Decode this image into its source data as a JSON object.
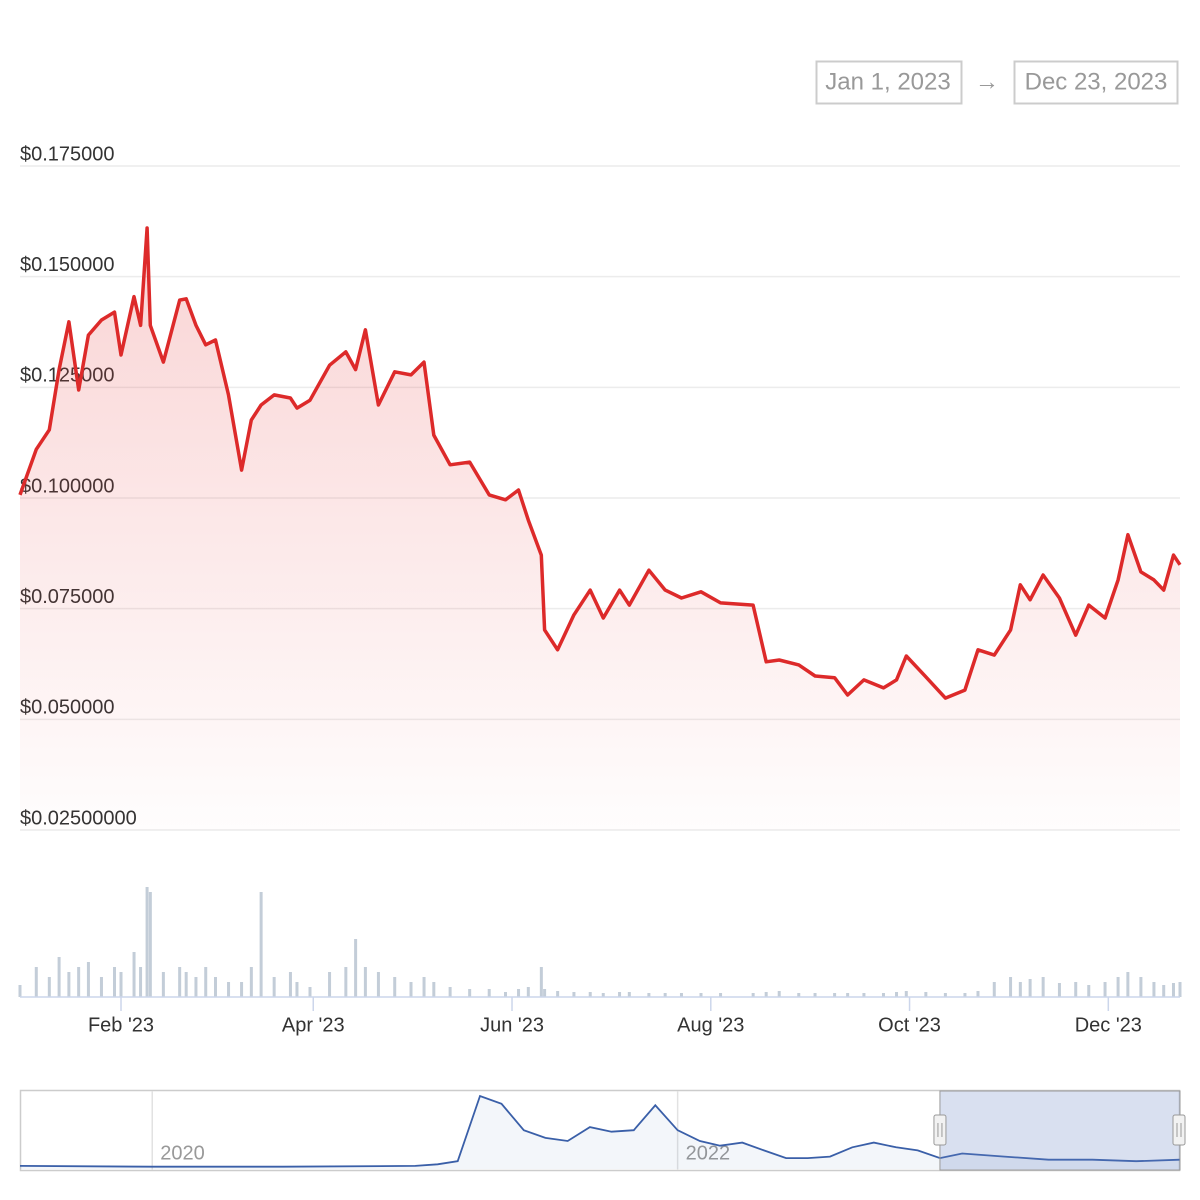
{
  "chart_data": [
    {
      "type": "line",
      "range": {
        "from": "Jan 1, 2023",
        "separator": "→",
        "to": "Dec 23, 2023"
      },
      "color": "#dd2a2a",
      "x": [
        "2023-01-01",
        "2023-01-06",
        "2023-01-10",
        "2023-01-13",
        "2023-01-16",
        "2023-01-19",
        "2023-01-22",
        "2023-01-26",
        "2023-01-30",
        "2023-02-01",
        "2023-02-05",
        "2023-02-07",
        "2023-02-09",
        "2023-02-10",
        "2023-02-14",
        "2023-02-19",
        "2023-02-21",
        "2023-02-24",
        "2023-02-27",
        "2023-03-02",
        "2023-03-06",
        "2023-03-10",
        "2023-03-13",
        "2023-03-16",
        "2023-03-20",
        "2023-03-25",
        "2023-03-27",
        "2023-03-31",
        "2023-04-06",
        "2023-04-11",
        "2023-04-14",
        "2023-04-17",
        "2023-04-21",
        "2023-04-26",
        "2023-05-01",
        "2023-05-05",
        "2023-05-08",
        "2023-05-13",
        "2023-05-19",
        "2023-05-25",
        "2023-05-30",
        "2023-06-03",
        "2023-06-06",
        "2023-06-10",
        "2023-06-11",
        "2023-06-15",
        "2023-06-20",
        "2023-06-25",
        "2023-06-29",
        "2023-07-04",
        "2023-07-07",
        "2023-07-13",
        "2023-07-18",
        "2023-07-23",
        "2023-07-29",
        "2023-08-04",
        "2023-08-14",
        "2023-08-18",
        "2023-08-22",
        "2023-08-28",
        "2023-09-02",
        "2023-09-08",
        "2023-09-12",
        "2023-09-17",
        "2023-09-23",
        "2023-09-27",
        "2023-09-30",
        "2023-10-06",
        "2023-10-12",
        "2023-10-18",
        "2023-10-22",
        "2023-10-27",
        "2023-11-01",
        "2023-11-04",
        "2023-11-07",
        "2023-11-11",
        "2023-11-16",
        "2023-11-21",
        "2023-11-25",
        "2023-11-30",
        "2023-12-04",
        "2023-12-07",
        "2023-12-11",
        "2023-12-15",
        "2023-12-18",
        "2023-12-21",
        "2023-12-23"
      ],
      "values": [
        0.1007,
        0.111,
        0.1154,
        0.129,
        0.1398,
        0.1244,
        0.1368,
        0.1402,
        0.142,
        0.1323,
        0.1455,
        0.139,
        0.161,
        0.139,
        0.1307,
        0.1447,
        0.145,
        0.139,
        0.1346,
        0.1357,
        0.1233,
        0.1063,
        0.1176,
        0.121,
        0.1233,
        0.1226,
        0.1203,
        0.1221,
        0.13,
        0.133,
        0.129,
        0.138,
        0.121,
        0.1285,
        0.1278,
        0.1307,
        0.1142,
        0.1075,
        0.1081,
        0.1007,
        0.0996,
        0.1018,
        0.095,
        0.0871,
        0.0702,
        0.0657,
        0.0736,
        0.0792,
        0.0729,
        0.0792,
        0.0758,
        0.0837,
        0.0792,
        0.0774,
        0.0788,
        0.0763,
        0.0758,
        0.063,
        0.0634,
        0.0623,
        0.0598,
        0.0594,
        0.0555,
        0.0589,
        0.0571,
        0.0589,
        0.0643,
        0.0596,
        0.0548,
        0.0566,
        0.0657,
        0.0645,
        0.0702,
        0.0804,
        0.077,
        0.0826,
        0.0774,
        0.069,
        0.0758,
        0.0729,
        0.0815,
        0.0917,
        0.0833,
        0.0815,
        0.0792,
        0.0871,
        0.0849
      ],
      "volume": [
        12,
        30,
        20,
        40,
        25,
        30,
        35,
        20,
        30,
        25,
        45,
        30,
        110,
        105,
        25,
        30,
        25,
        20,
        30,
        20,
        15,
        15,
        30,
        105,
        20,
        25,
        15,
        10,
        25,
        30,
        58,
        30,
        25,
        20,
        15,
        20,
        15,
        10,
        8,
        8,
        5,
        8,
        10,
        30,
        8,
        6,
        5,
        5,
        4,
        5,
        5,
        4,
        4,
        4,
        4,
        4,
        4,
        5,
        6,
        4,
        4,
        4,
        4,
        4,
        4,
        5,
        6,
        5,
        4,
        4,
        6,
        15,
        20,
        15,
        18,
        20,
        14,
        15,
        12,
        15,
        20,
        25,
        20,
        15,
        12,
        14,
        15
      ],
      "volume_color": "#c3cdd8",
      "xlim": [
        "2023-01-01",
        "2023-12-23"
      ],
      "xticks": [
        {
          "value": "2023-02-01",
          "label": "Feb '23"
        },
        {
          "value": "2023-04-01",
          "label": "Apr '23"
        },
        {
          "value": "2023-06-01",
          "label": "Jun '23"
        },
        {
          "value": "2023-08-01",
          "label": "Aug '23"
        },
        {
          "value": "2023-10-01",
          "label": "Oct '23"
        },
        {
          "value": "2023-12-01",
          "label": "Dec '23"
        }
      ],
      "ylim": [
        0.025,
        0.175
      ],
      "yticks": [
        {
          "value": 0.175,
          "label": "$0.175000"
        },
        {
          "value": 0.15,
          "label": "$0.150000"
        },
        {
          "value": 0.125,
          "label": "$0.125000"
        },
        {
          "value": 0.1,
          "label": "$0.100000"
        },
        {
          "value": 0.075,
          "label": "$0.075000"
        },
        {
          "value": 0.05,
          "label": "$0.050000"
        },
        {
          "value": 0.025,
          "label": "$0.02500000"
        }
      ],
      "grid": true
    },
    {
      "type": "navigator",
      "color": "#3a5fa8",
      "x": [
        "2019-07",
        "2020-01",
        "2020-07",
        "2021-01",
        "2021-02",
        "2021-03",
        "2021-04",
        "2021-05",
        "2021-06",
        "2021-07",
        "2021-08",
        "2021-09",
        "2021-10",
        "2021-11",
        "2021-12",
        "2022-01",
        "2022-02",
        "2022-03",
        "2022-04",
        "2022-05",
        "2022-06",
        "2022-07",
        "2022-08",
        "2022-09",
        "2022-10",
        "2022-11",
        "2022-12",
        "2023-01",
        "2023-02",
        "2023-04",
        "2023-06",
        "2023-08",
        "2023-10",
        "2023-12"
      ],
      "values": [
        0.02,
        0.015,
        0.015,
        0.02,
        0.03,
        0.05,
        0.47,
        0.42,
        0.25,
        0.2,
        0.18,
        0.27,
        0.24,
        0.25,
        0.41,
        0.25,
        0.18,
        0.15,
        0.17,
        0.12,
        0.07,
        0.07,
        0.08,
        0.14,
        0.17,
        0.14,
        0.12,
        0.07,
        0.1,
        0.08,
        0.06,
        0.06,
        0.05,
        0.06
      ],
      "xlim": [
        "2019-07",
        "2023-12"
      ],
      "xticks": [
        {
          "value": "2020-01",
          "label": "2020"
        },
        {
          "value": "2022-01",
          "label": "2022"
        }
      ]
    }
  ]
}
